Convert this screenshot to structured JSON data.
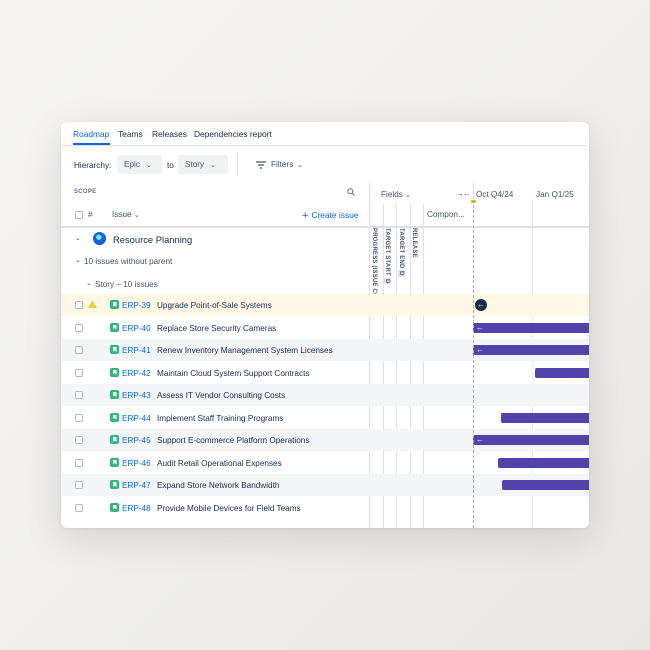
{
  "tabs": [
    {
      "label": "Roadmap",
      "active": true
    },
    {
      "label": "Teams",
      "active": false
    },
    {
      "label": "Releases",
      "active": false
    },
    {
      "label": "Dependencies report",
      "active": false
    }
  ],
  "toolbar": {
    "hierarchy_label": "Hierarchy:",
    "from_value": "Epic",
    "to_label": "to",
    "to_value": "Story",
    "filters_label": "Filters"
  },
  "scope": {
    "title": "SCOPE",
    "issue_col": "Issue",
    "create_label": "Create issue"
  },
  "fields": {
    "label": "Fields",
    "columns": [
      "PROGRESS (ISSUE COUNT)",
      "TARGET START",
      "TARGET END",
      "RELEASE"
    ],
    "target_start_badge": "D",
    "target_end_badge": "D",
    "components_label": "Compon..."
  },
  "timeline": {
    "q1": "Oct Q4/24",
    "q2": "Jan Q1/25",
    "today_color": "#e2b203",
    "bar_color": "#5243aa"
  },
  "group": {
    "title": "Resource Planning",
    "subgroup": "10 issues without parent",
    "story_group": "Story – 10 issues"
  },
  "issues": [
    {
      "key": "ERP-39",
      "summary": "Upgrade Point-of-Sale Systems",
      "warning": true
    },
    {
      "key": "ERP-40",
      "summary": "Replace Store Security Cameras"
    },
    {
      "key": "ERP-41",
      "summary": "Renew Inventory Management System Licenses"
    },
    {
      "key": "ERP-42",
      "summary": "Maintain Cloud System Support Contracts"
    },
    {
      "key": "ERP-43",
      "summary": "Assess IT Vendor Consulting Costs"
    },
    {
      "key": "ERP-44",
      "summary": "Implement Staff Training Programs"
    },
    {
      "key": "ERP-45",
      "summary": "Support E-commerce Platform Operations"
    },
    {
      "key": "ERP-46",
      "summary": "Audit Retail Operational Expenses"
    },
    {
      "key": "ERP-47",
      "summary": "Expand Store Network Bandwidth"
    },
    {
      "key": "ERP-48",
      "summary": "Provide Mobile Devices for Field Teams"
    }
  ]
}
